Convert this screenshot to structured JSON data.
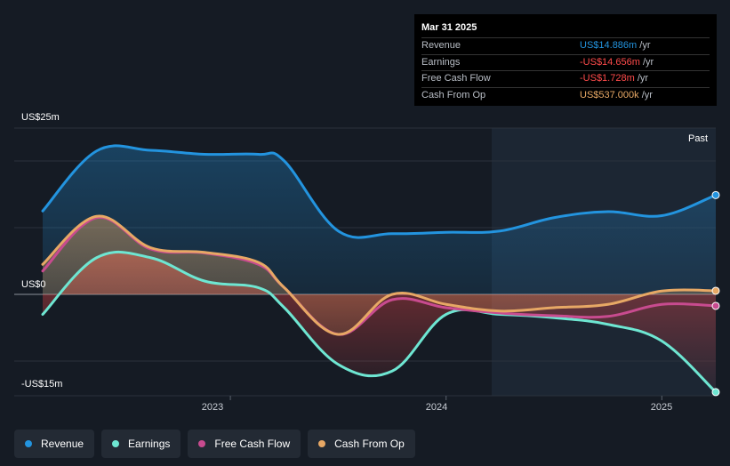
{
  "colors": {
    "background": "#151b24",
    "revenue": "#2394df",
    "earnings": "#6ee6d2",
    "free_cash_flow": "#c84b8f",
    "cash_from_op": "#e7a865",
    "negative": "#ff4b4b"
  },
  "tooltip": {
    "title": "Mar 31 2025",
    "rows": [
      {
        "label": "Revenue",
        "value": "US$14.886m",
        "unit": "/yr",
        "color": "#2394df"
      },
      {
        "label": "Earnings",
        "value": "-US$14.656m",
        "unit": "/yr",
        "color": "#ff4b4b"
      },
      {
        "label": "Free Cash Flow",
        "value": "-US$1.728m",
        "unit": "/yr",
        "color": "#ff4b4b"
      },
      {
        "label": "Cash From Op",
        "value": "US$537.000k",
        "unit": "/yr",
        "color": "#e7a865"
      }
    ]
  },
  "past_label": "Past",
  "legend": [
    {
      "label": "Revenue",
      "color": "#2394df"
    },
    {
      "label": "Earnings",
      "color": "#6ee6d2"
    },
    {
      "label": "Free Cash Flow",
      "color": "#c84b8f"
    },
    {
      "label": "Cash From Op",
      "color": "#e7a865"
    }
  ],
  "chart_data": {
    "type": "line",
    "y_unit": "US$m",
    "ylim": [
      -15,
      25
    ],
    "y_tick_labels": [
      "US$25m",
      "US$0",
      "-US$15m"
    ],
    "x_tick_labels": [
      "2023",
      "2024",
      "2025"
    ],
    "x_ticks": [
      2023.0,
      2024.0,
      2025.0
    ],
    "xlim": [
      2022.13,
      2025.25
    ],
    "grid": true,
    "legend_position": "bottom",
    "series": [
      {
        "name": "Revenue",
        "x": [
          2022.13,
          2022.38,
          2022.63,
          2022.88,
          2023.13,
          2023.25,
          2023.5,
          2023.75,
          2024.0,
          2024.25,
          2024.5,
          2024.75,
          2025.0,
          2025.25
        ],
        "y": [
          12.5,
          21.5,
          21.6,
          21.0,
          21.0,
          20.0,
          9.5,
          9.1,
          9.3,
          9.5,
          11.5,
          12.4,
          11.8,
          14.886
        ]
      },
      {
        "name": "Earnings",
        "x": [
          2022.13,
          2022.38,
          2022.63,
          2022.88,
          2023.13,
          2023.25,
          2023.5,
          2023.75,
          2024.0,
          2024.25,
          2024.5,
          2024.75,
          2025.0,
          2025.25
        ],
        "y": [
          -3.0,
          5.5,
          5.5,
          2.0,
          1.0,
          -2.0,
          -10.5,
          -11.5,
          -3.0,
          -3.0,
          -3.5,
          -4.5,
          -7.0,
          -14.656
        ]
      },
      {
        "name": "Free Cash Flow",
        "x": [
          2022.13,
          2022.38,
          2022.63,
          2022.88,
          2023.13,
          2023.25,
          2023.5,
          2023.75,
          2024.0,
          2024.25,
          2024.5,
          2024.75,
          2025.0,
          2025.25
        ],
        "y": [
          3.5,
          11.5,
          6.8,
          6.2,
          4.5,
          1.0,
          -6.0,
          -0.8,
          -2.0,
          -2.8,
          -3.2,
          -3.3,
          -1.5,
          -1.728
        ]
      },
      {
        "name": "Cash From Op",
        "x": [
          2022.13,
          2022.38,
          2022.63,
          2022.88,
          2023.13,
          2023.25,
          2023.5,
          2023.75,
          2024.0,
          2024.25,
          2024.5,
          2024.75,
          2025.0,
          2025.25
        ],
        "y": [
          4.5,
          11.7,
          7.0,
          6.3,
          4.8,
          1.0,
          -6.0,
          0.0,
          -1.5,
          -2.5,
          -2.0,
          -1.5,
          0.5,
          0.537
        ]
      }
    ]
  }
}
